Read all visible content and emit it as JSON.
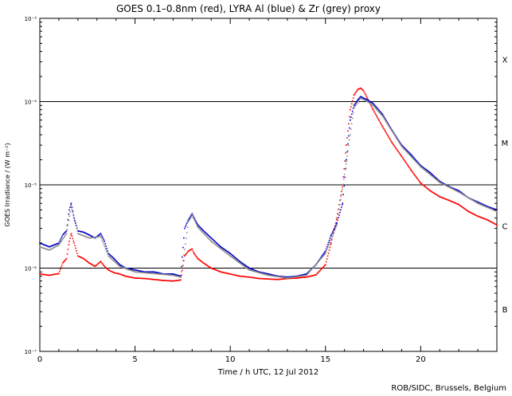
{
  "chart_data": {
    "type": "scatter",
    "title": "GOES 0.1–0.8nm (red), LYRA Al (blue) & Zr (grey) proxy",
    "xlabel": "Time / h UTC, 12 Jul 2012",
    "ylabel": "GOES Irradiance / (W m⁻²)",
    "credit": "ROB/SIDC, Brussels, Belgium",
    "xlim": [
      0,
      24
    ],
    "ylim": [
      1e-07,
      0.001
    ],
    "yscale": "log",
    "x_ticks": [
      {
        "value": 0,
        "label": "0"
      },
      {
        "value": 5,
        "label": "5"
      },
      {
        "value": 10,
        "label": "10"
      },
      {
        "value": 15,
        "label": "15"
      },
      {
        "value": 20,
        "label": "20"
      }
    ],
    "y_ticks": [
      {
        "value": 1e-07,
        "label": "10⁻⁷"
      },
      {
        "value": 1e-06,
        "label": "10⁻⁶"
      },
      {
        "value": 1e-05,
        "label": "10⁻⁵"
      },
      {
        "value": 0.0001,
        "label": "10⁻⁴"
      },
      {
        "value": 0.001,
        "label": "10⁻³"
      }
    ],
    "flare_class_lines": [
      1e-06,
      1e-05,
      0.0001
    ],
    "flare_class_labels": [
      {
        "label": "B",
        "value": 3.2e-07
      },
      {
        "label": "C",
        "value": 3.2e-06
      },
      {
        "label": "M",
        "value": 3.2e-05
      },
      {
        "label": "X",
        "value": 0.00032
      }
    ],
    "series": [
      {
        "name": "GOES 0.1–0.8nm",
        "color": "#ff0000",
        "x": [
          0,
          0.5,
          1.0,
          1.2,
          1.4,
          1.55,
          1.65,
          1.8,
          2.0,
          2.3,
          2.6,
          2.9,
          3.2,
          3.4,
          3.6,
          3.9,
          4.2,
          4.5,
          5.0,
          5.5,
          6.0,
          6.5,
          7.0,
          7.4,
          7.6,
          7.8,
          8.0,
          8.1,
          8.3,
          8.6,
          9.0,
          9.5,
          10.0,
          10.5,
          11.0,
          11.5,
          12.0,
          12.5,
          13.0,
          13.5,
          14.0,
          14.5,
          15.0,
          15.3,
          15.6,
          15.9,
          16.1,
          16.3,
          16.5,
          16.7,
          16.85,
          17.0,
          17.2,
          17.5,
          18.0,
          18.5,
          19.0,
          19.5,
          20.0,
          20.5,
          21.0,
          21.5,
          22.0,
          22.5,
          23.0,
          23.5,
          24.0
        ],
        "y": [
          8.5e-07,
          8.2e-07,
          8.6e-07,
          1.15e-06,
          1.3e-06,
          2.1e-06,
          2.6e-06,
          2e-06,
          1.4e-06,
          1.3e-06,
          1.15e-06,
          1.05e-06,
          1.2e-06,
          1.05e-06,
          9.5e-07,
          8.8e-07,
          8.5e-07,
          8e-07,
          7.6e-07,
          7.5e-07,
          7.3e-07,
          7.1e-07,
          7e-07,
          7.2e-07,
          1.4e-06,
          1.6e-06,
          1.7e-06,
          1.5e-06,
          1.3e-06,
          1.15e-06,
          1e-06,
          9e-07,
          8.5e-07,
          8e-07,
          7.8e-07,
          7.5e-07,
          7.4e-07,
          7.3e-07,
          7.5e-07,
          7.6e-07,
          7.8e-07,
          8.3e-07,
          1.1e-06,
          2e-06,
          4e-06,
          1e-05,
          3e-05,
          8e-05,
          0.00012,
          0.00014,
          0.000145,
          0.000135,
          0.00011,
          8e-05,
          5e-05,
          3.2e-05,
          2.2e-05,
          1.5e-05,
          1.05e-05,
          8.5e-06,
          7.2e-06,
          6.5e-06,
          5.8e-06,
          4.8e-06,
          4.2e-06,
          3.8e-06,
          3.3e-06
        ]
      },
      {
        "name": "LYRA Al",
        "color": "#0000c8",
        "x": [
          0,
          0.5,
          1.0,
          1.2,
          1.4,
          1.55,
          1.65,
          1.8,
          2.0,
          2.3,
          2.6,
          2.9,
          3.2,
          3.4,
          3.6,
          3.9,
          4.2,
          4.5,
          5.0,
          5.5,
          6.0,
          6.5,
          7.0,
          7.4,
          7.6,
          7.8,
          8.0,
          8.1,
          8.3,
          8.6,
          9.0,
          9.5,
          10.0,
          10.5,
          11.0,
          11.5,
          12.0,
          12.5,
          13.0,
          13.5,
          14.0,
          14.5,
          15.0,
          15.3,
          15.6,
          15.9,
          16.1,
          16.3,
          16.5,
          16.7,
          16.85,
          17.0,
          17.2,
          17.5,
          18.0,
          18.5,
          19.0,
          19.5,
          20.0,
          20.5,
          21.0,
          21.5,
          22.0,
          22.5,
          23.0,
          23.5,
          24.0
        ],
        "y": [
          2e-06,
          1.8e-06,
          2e-06,
          2.5e-06,
          2.8e-06,
          5e-06,
          6e-06,
          4e-06,
          2.8e-06,
          2.7e-06,
          2.5e-06,
          2.3e-06,
          2.6e-06,
          2.1e-06,
          1.5e-06,
          1.3e-06,
          1.1e-06,
          1e-06,
          9.5e-07,
          9e-07,
          9e-07,
          8.5e-07,
          8.5e-07,
          8e-07,
          3e-06,
          3.8e-06,
          4.5e-06,
          4e-06,
          3.3e-06,
          2.8e-06,
          2.3e-06,
          1.8e-06,
          1.5e-06,
          1.2e-06,
          1e-06,
          9e-07,
          8.5e-07,
          8e-07,
          7.8e-07,
          8e-07,
          8.5e-07,
          1.1e-06,
          1.6e-06,
          2.5e-06,
          3.5e-06,
          6e-06,
          2e-05,
          6e-05,
          9e-05,
          0.000105,
          0.000115,
          0.00011,
          0.000105,
          9.5e-05,
          7e-05,
          4.5e-05,
          3e-05,
          2.3e-05,
          1.7e-05,
          1.4e-05,
          1.1e-05,
          9.5e-06,
          8.5e-06,
          7e-06,
          6.2e-06,
          5.5e-06,
          5e-06
        ]
      },
      {
        "name": "Zr proxy",
        "color": "#8c8c8c",
        "x": [
          0,
          0.5,
          1.0,
          1.4,
          1.65,
          2.0,
          2.6,
          3.2,
          3.6,
          4.2,
          5.0,
          6.0,
          7.0,
          7.4,
          7.8,
          8.0,
          8.3,
          9.0,
          10.0,
          11.0,
          12.0,
          13.0,
          14.0,
          15.0,
          15.6,
          16.1,
          16.5,
          16.85,
          17.2,
          17.5,
          18.0,
          19.0,
          20.0,
          21.0,
          22.0,
          23.0,
          24.0
        ],
        "y": [
          1.8e-06,
          1.65e-06,
          1.9e-06,
          2.6e-06,
          5.5e-06,
          2.6e-06,
          2.3e-06,
          2.4e-06,
          1.4e-06,
          1.05e-06,
          9e-07,
          8.6e-07,
          8.2e-07,
          7.8e-07,
          3.6e-06,
          4.3e-06,
          3.1e-06,
          2.1e-06,
          1.4e-06,
          9.5e-07,
          8.2e-07,
          7.6e-07,
          8.2e-07,
          1.5e-06,
          3.3e-06,
          1.9e-05,
          8.5e-05,
          0.00011,
          0.0001,
          9e-05,
          6.7e-05,
          2.9e-05,
          1.65e-05,
          1.07e-05,
          8.2e-06,
          6e-06,
          4.8e-06
        ]
      }
    ]
  }
}
